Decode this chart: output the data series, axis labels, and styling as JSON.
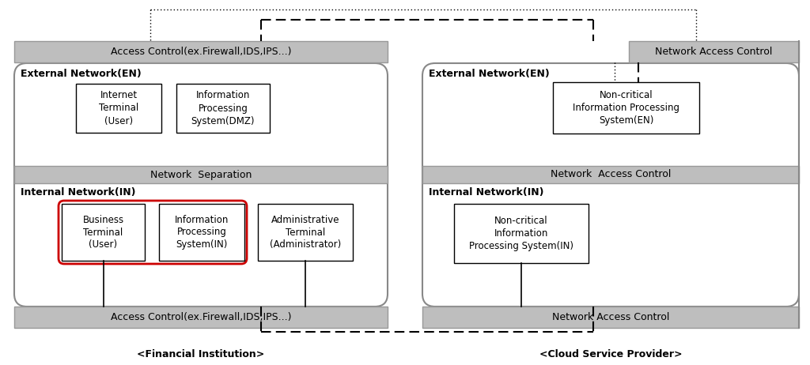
{
  "bg_color": "#ffffff",
  "gray_color": "#bebebe",
  "box_ec": "#000000",
  "red_ec": "#cc0000",
  "rounded_ec": "#888888",
  "fi_label": "<Financial Institution>",
  "csp_label": "<Cloud Service Provider>",
  "fi_ac_top": "Access Control(ex.Firewall,IDS,IPS...)",
  "fi_ac_bottom": "Access Control(ex.Firewall,IDS,IPS...)",
  "fi_net_sep": "Network  Separation",
  "fi_en_label": "External Network(EN)",
  "fi_in_label": "Internal Network(IN)",
  "fi_en_box1": "Internet\nTerminal\n(User)",
  "fi_en_box2": "Information\nProcessing\nSystem(DMZ)",
  "fi_in_box1": "Business\nTerminal\n(User)",
  "fi_in_box2": "Information\nProcessing\nSystem(IN)",
  "fi_in_box3": "Administrative\nTerminal\n(Administrator)",
  "csp_nac_top": "Network Access Control",
  "csp_nac_mid": "Network  Access Control",
  "csp_nac_bottom": "Network Access Control",
  "csp_en_label": "External Network(EN)",
  "csp_in_label": "Internal Network(IN)",
  "csp_en_box": "Non-critical\nInformation Processing\nSystem(EN)",
  "csp_in_box": "Non-critical\nInformation\nProcessing System(IN)"
}
